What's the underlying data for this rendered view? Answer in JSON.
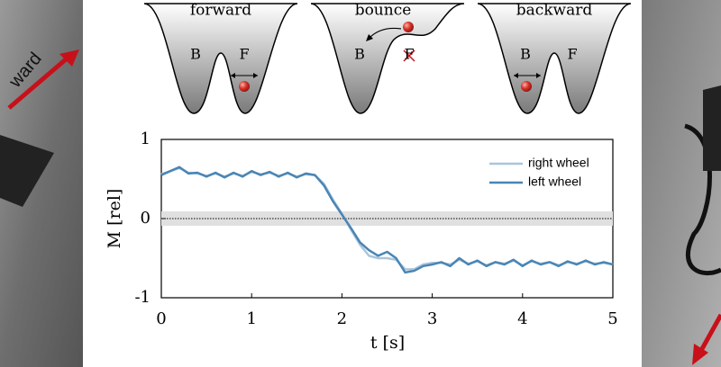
{
  "chart_data": {
    "type": "line",
    "xlabel": "t [s]",
    "ylabel": "M [rel]",
    "annotations": [
      "forward",
      "bounce",
      "backward",
      "B",
      "F",
      "B",
      "F",
      "B",
      "F",
      "ward"
    ],
    "x": [
      0,
      0.1,
      0.2,
      0.3,
      0.4,
      0.5,
      0.6,
      0.7,
      0.8,
      0.9,
      1,
      1.1,
      1.2,
      1.3,
      1.4,
      1.5,
      1.6,
      1.7,
      1.8,
      1.9,
      2,
      2.1,
      2.2,
      2.3,
      2.4,
      2.5,
      2.6,
      2.7,
      2.8,
      2.9,
      3,
      3.1,
      3.2,
      3.3,
      3.4,
      3.5,
      3.6,
      3.7,
      3.8,
      3.9,
      4,
      4.1,
      4.2,
      4.3,
      4.4,
      4.5,
      4.6,
      4.7,
      4.8,
      4.9,
      5
    ],
    "series": [
      {
        "name": "right wheel",
        "color": "#a9c6dc",
        "values": [
          0.56,
          0.6,
          0.64,
          0.58,
          0.57,
          0.54,
          0.57,
          0.53,
          0.57,
          0.54,
          0.59,
          0.56,
          0.58,
          0.54,
          0.57,
          0.53,
          0.56,
          0.55,
          0.44,
          0.24,
          0.06,
          -0.14,
          -0.33,
          -0.47,
          -0.5,
          -0.5,
          -0.52,
          -0.64,
          -0.64,
          -0.58,
          -0.56,
          -0.56,
          -0.58,
          -0.52,
          -0.57,
          -0.54,
          -0.59,
          -0.55,
          -0.57,
          -0.53,
          -0.59,
          -0.54,
          -0.57,
          -0.55,
          -0.59,
          -0.55,
          -0.57,
          -0.54,
          -0.57,
          -0.56,
          -0.58
        ]
      },
      {
        "name": "left wheel",
        "color": "#4a85b4",
        "values": [
          0.55,
          0.6,
          0.65,
          0.57,
          0.58,
          0.53,
          0.58,
          0.52,
          0.58,
          0.53,
          0.6,
          0.55,
          0.59,
          0.53,
          0.58,
          0.52,
          0.57,
          0.55,
          0.42,
          0.22,
          0.05,
          -0.12,
          -0.3,
          -0.4,
          -0.47,
          -0.42,
          -0.5,
          -0.68,
          -0.66,
          -0.6,
          -0.58,
          -0.55,
          -0.6,
          -0.5,
          -0.58,
          -0.53,
          -0.6,
          -0.55,
          -0.58,
          -0.52,
          -0.6,
          -0.53,
          -0.58,
          -0.55,
          -0.6,
          -0.54,
          -0.58,
          -0.53,
          -0.58,
          -0.55,
          -0.58
        ]
      }
    ],
    "xlim": [
      0,
      5
    ],
    "ylim": [
      -1,
      1
    ],
    "xticks": [
      0,
      1,
      2,
      3,
      4,
      5
    ],
    "yticks": [
      -1,
      0,
      1
    ],
    "legend": "upper right"
  }
}
